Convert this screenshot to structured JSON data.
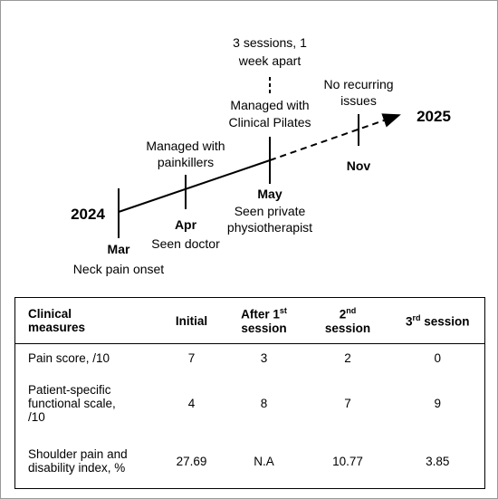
{
  "timeline": {
    "start_year": "2024",
    "end_year": "2025",
    "events": [
      {
        "month": "Mar",
        "below": [
          "Neck pain onset"
        ]
      },
      {
        "month": "Apr",
        "below": [
          "Seen doctor"
        ],
        "above": [
          "Managed with",
          "painkillers"
        ]
      },
      {
        "month": "May",
        "below": [
          "Seen private",
          "physiotherapist"
        ],
        "above": [
          "Managed with",
          "Clinical Pilates"
        ],
        "note": [
          "3 sessions, 1",
          "week apart"
        ]
      },
      {
        "month": "Nov",
        "above": [
          "No recurring",
          "issues"
        ]
      }
    ]
  },
  "table": {
    "header": [
      [
        "Clinical",
        "measures"
      ],
      [
        "Initial"
      ],
      [
        "After 1",
        "st",
        "session"
      ],
      [
        "2",
        "nd",
        "session"
      ],
      [
        "3",
        "rd",
        " session"
      ]
    ],
    "rows": [
      [
        [
          "Pain score, /10"
        ],
        "7",
        "3",
        "2",
        "0"
      ],
      [
        [
          "Patient-specific",
          "functional scale,",
          "/10"
        ],
        "4",
        "8",
        "7",
        "9"
      ],
      [
        [
          "Shoulder pain and",
          "disability index, %"
        ],
        "27.69",
        "N.A",
        "10.77",
        "3.85"
      ]
    ]
  }
}
